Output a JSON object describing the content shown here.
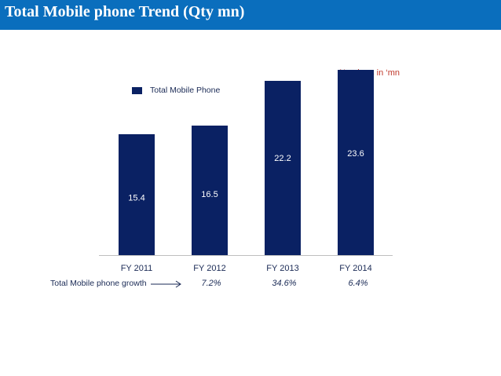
{
  "header": {
    "title": "Total Mobile phone Trend (Qty mn)"
  },
  "units_note": "Numbers in ‘mn",
  "colors": {
    "title_bar": "#0a6ebd",
    "bar": "#0a2163",
    "text": "#1a2a55",
    "units_note": "#c0392b"
  },
  "growth": {
    "label": "Total Mobile phone growth",
    "arrow_icon": "right-arrow-icon",
    "values": [
      "7.2%",
      "34.6%",
      "6.4%"
    ]
  },
  "chart_data": {
    "type": "bar",
    "title": "Total Mobile phone Trend (Qty mn)",
    "categories": [
      "FY 2011",
      "FY 2012",
      "FY 2013",
      "FY 2014"
    ],
    "series": [
      {
        "name": "Total Mobile Phone",
        "values": [
          15.4,
          16.5,
          22.2,
          23.6
        ]
      }
    ],
    "data_labels": [
      "15.4",
      "16.5",
      "22.2",
      "23.6"
    ],
    "xlabel": "",
    "ylabel": "",
    "ylim": [
      0,
      29.5
    ],
    "grid": false,
    "legend": "top-left"
  }
}
